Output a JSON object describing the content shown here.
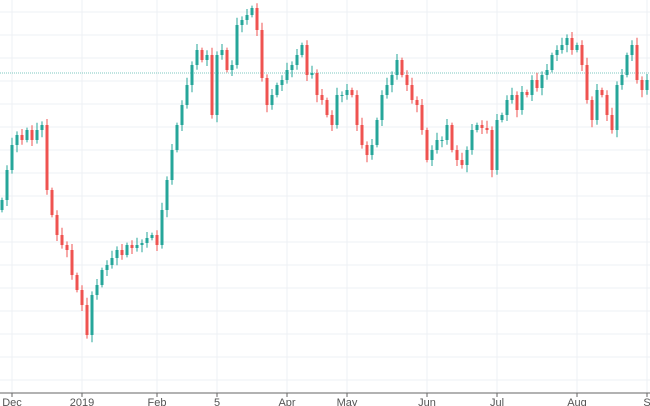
{
  "chart_data": {
    "type": "candlestick",
    "title": "",
    "xlabel": "",
    "ylabel": "",
    "ylim": [
      0,
      400
    ],
    "grid": true,
    "colors": {
      "up": "#26a69a",
      "down": "#ef5350",
      "grid": "#eef1f4",
      "axis": "#666666",
      "price_line": "#7fc8c0"
    },
    "price_line": 327,
    "x_ticks": [
      {
        "label": "Dec",
        "index": 2
      },
      {
        "label": "2019",
        "index": 16
      },
      {
        "label": "Feb",
        "index": 31
      },
      {
        "label": "5",
        "index": 43
      },
      {
        "label": "Apr",
        "index": 57
      },
      {
        "label": "May",
        "index": 69
      },
      {
        "label": "Jun",
        "index": 85
      },
      {
        "label": "Jul",
        "index": 99
      },
      {
        "label": "Aug",
        "index": 115
      },
      {
        "label": "S",
        "index": 129
      }
    ],
    "first_open": 190,
    "close": [
      200,
      230,
      255,
      265,
      260,
      270,
      260,
      270,
      275,
      210,
      185,
      165,
      155,
      150,
      125,
      110,
      95,
      65,
      105,
      115,
      130,
      135,
      142,
      150,
      145,
      155,
      152,
      155,
      157,
      162,
      165,
      155,
      190,
      220,
      250,
      275,
      295,
      315,
      335,
      350,
      340,
      345,
      285,
      345,
      350,
      330,
      335,
      375,
      380,
      385,
      392,
      370,
      322,
      295,
      305,
      315,
      320,
      330,
      335,
      345,
      355,
      325,
      327,
      305,
      300,
      285,
      275,
      305,
      305,
      310,
      305,
      275,
      255,
      245,
      255,
      280,
      305,
      315,
      325,
      340,
      325,
      315,
      300,
      295,
      270,
      240,
      250,
      260,
      260,
      275,
      250,
      240,
      235,
      250,
      270,
      275,
      272,
      270,
      230,
      280,
      285,
      300,
      305,
      290,
      308,
      305,
      320,
      312,
      325,
      330,
      345,
      350,
      355,
      362,
      350,
      355,
      335,
      300,
      280,
      310,
      305,
      285,
      270,
      315,
      325,
      345,
      355,
      320,
      310,
      320
    ],
    "wick": 6
  }
}
